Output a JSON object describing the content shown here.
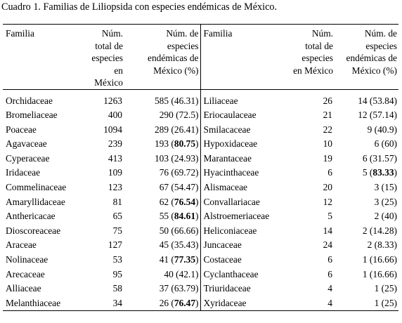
{
  "caption": "Cuadro 1. Familias de Liliopsida con especies endémicas de México.",
  "headers": {
    "familia": "Familia",
    "total": [
      "Núm.",
      "total de",
      "especies",
      "en México"
    ],
    "endemic": [
      "Núm. de",
      "especies",
      "endémicas de",
      "México (%)"
    ]
  },
  "left_rows": [
    {
      "familia": "Orchidaceae",
      "total": "1263",
      "count": "585",
      "pct": "46.31",
      "bold": false
    },
    {
      "familia": "Bromeliaceae",
      "total": "400",
      "count": "290",
      "pct": "72.5",
      "bold": false
    },
    {
      "familia": "Poaceae",
      "total": "1094",
      "count": "289",
      "pct": "26.41",
      "bold": false
    },
    {
      "familia": "Agavaceae",
      "total": "239",
      "count": "193",
      "pct": "80.75",
      "bold": true
    },
    {
      "familia": "Cyperaceae",
      "total": "413",
      "count": "103",
      "pct": "24.93",
      "bold": false
    },
    {
      "familia": "Iridaceae",
      "total": "109",
      "count": "76",
      "pct": "69.72",
      "bold": false
    },
    {
      "familia": "Commelinaceae",
      "total": "123",
      "count": "67",
      "pct": "54.47",
      "bold": false
    },
    {
      "familia": "Amaryllidaceae",
      "total": "81",
      "count": "62",
      "pct": "76.54",
      "bold": true
    },
    {
      "familia": "Anthericacae",
      "total": "65",
      "count": "55",
      "pct": "84.61",
      "bold": true
    },
    {
      "familia": "Dioscoreaceae",
      "total": "75",
      "count": "50",
      "pct": "66.66",
      "bold": false
    },
    {
      "familia": "Araceae",
      "total": "127",
      "count": "45",
      "pct": "35.43",
      "bold": false
    },
    {
      "familia": "Nolinaceae",
      "total": "53",
      "count": "41",
      "pct": "77.35",
      "bold": true
    },
    {
      "familia": "Arecaceae",
      "total": "95",
      "count": "40",
      "pct": "42.1",
      "bold": false
    },
    {
      "familia": "Alliaceae",
      "total": "58",
      "count": "37",
      "pct": "63.79",
      "bold": false
    },
    {
      "familia": "Melanthiaceae",
      "total": "34",
      "count": "26",
      "pct": "76.47",
      "bold": true
    }
  ],
  "right_rows": [
    {
      "familia": "Liliaceae",
      "total": "26",
      "count": "14",
      "pct": "53.84",
      "bold": false
    },
    {
      "familia": "Eriocaulaceae",
      "total": "21",
      "count": "12",
      "pct": "57.14",
      "bold": false
    },
    {
      "familia": "Smilacaceae",
      "total": "22",
      "count": "9",
      "pct": "40.9",
      "bold": false
    },
    {
      "familia": "Hypoxidaceae",
      "total": "10",
      "count": "6",
      "pct": "60",
      "bold": false
    },
    {
      "familia": "Marantaceae",
      "total": "19",
      "count": "6",
      "pct": "31.57",
      "bold": false
    },
    {
      "familia": "Hyacinthaceae",
      "total": "6",
      "count": "5",
      "pct": "83.33",
      "bold": true
    },
    {
      "familia": "Alismaceae",
      "total": "20",
      "count": "3",
      "pct": "15",
      "bold": false
    },
    {
      "familia": "Convallariacae",
      "total": "12",
      "count": "3",
      "pct": "25",
      "bold": false
    },
    {
      "familia": "Alstroemeriaceae",
      "total": "5",
      "count": "2",
      "pct": "40",
      "bold": false
    },
    {
      "familia": "Heliconiaceae",
      "total": "14",
      "count": "2",
      "pct": "14.28",
      "bold": false
    },
    {
      "familia": "Juncaceae",
      "total": "24",
      "count": "2",
      "pct": "8.33",
      "bold": false
    },
    {
      "familia": "Costaceae",
      "total": "6",
      "count": "1",
      "pct": "16.66",
      "bold": false
    },
    {
      "familia": "Cyclanthaceae",
      "total": "6",
      "count": "1",
      "pct": "16.66",
      "bold": false
    },
    {
      "familia": "Triuridaceae",
      "total": "4",
      "count": "1",
      "pct": "25",
      "bold": false
    },
    {
      "familia": "Xyridaceae",
      "total": "4",
      "count": "1",
      "pct": "25",
      "bold": false
    }
  ]
}
